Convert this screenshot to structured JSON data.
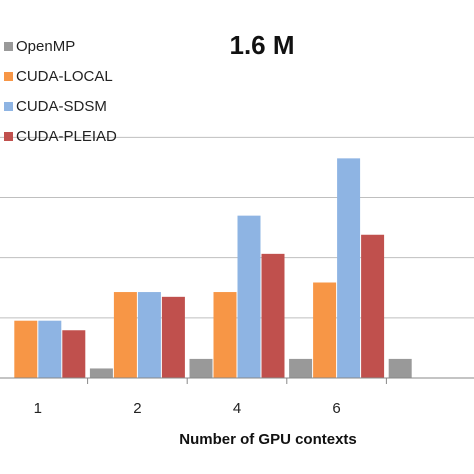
{
  "chart_data": {
    "type": "bar",
    "title": "1.6 M",
    "xlabel": "Number of GPU contexts",
    "ylabel": "",
    "categories": [
      "1",
      "2",
      "4",
      "6",
      ""
    ],
    "ylim": [
      0,
      31
    ],
    "grid": true,
    "legend_position": "top-left",
    "series": [
      {
        "name": "OpenMP",
        "color": "#999999",
        "values": [
          0,
          1,
          2,
          2,
          2
        ]
      },
      {
        "name": "CUDA-LOCAL",
        "color": "#F79646",
        "values": [
          6,
          9,
          9,
          10,
          null
        ]
      },
      {
        "name": "CUDA-SDSM",
        "color": "#8EB4E3",
        "values": [
          6,
          9,
          17,
          23,
          null
        ]
      },
      {
        "name": "CUDA-PLEIAD",
        "color": "#C0504D",
        "values": [
          5,
          8.5,
          13,
          15,
          null
        ]
      }
    ]
  }
}
